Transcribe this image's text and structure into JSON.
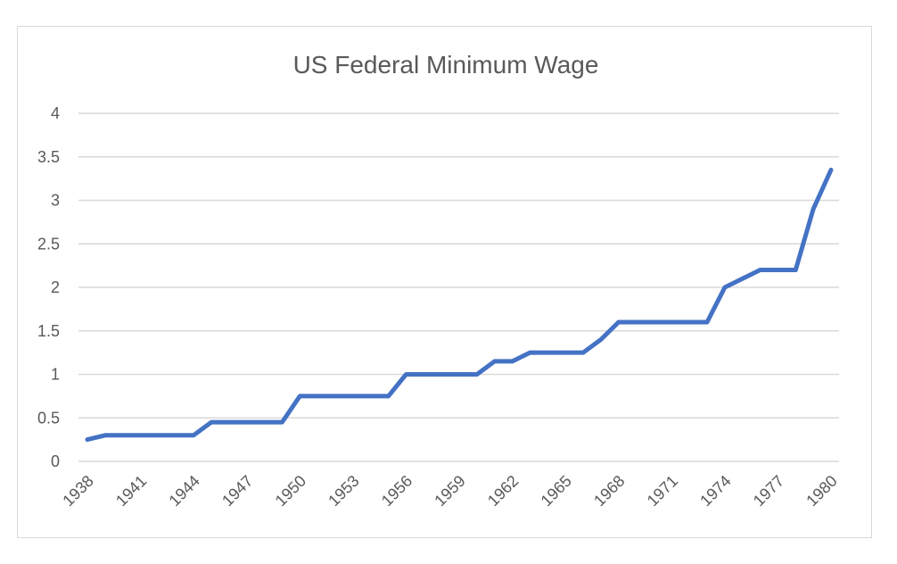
{
  "chart_data": {
    "type": "line",
    "title": "US Federal Minimum Wage",
    "xlabel": "",
    "ylabel": "",
    "ylim": [
      0,
      4
    ],
    "y_ticks": [
      "0",
      "0.5",
      "1",
      "1.5",
      "2",
      "2.5",
      "3",
      "3.5",
      "4"
    ],
    "x_tick_labels": [
      "1938",
      "1941",
      "1944",
      "1947",
      "1950",
      "1953",
      "1956",
      "1959",
      "1962",
      "1965",
      "1968",
      "1971",
      "1974",
      "1977",
      "1980"
    ],
    "grid": true,
    "legend": "none",
    "color": "#4472c4",
    "series": [
      {
        "x": [
          1938,
          1939,
          1940,
          1941,
          1942,
          1943,
          1944,
          1945,
          1946,
          1947,
          1948,
          1949,
          1950,
          1951,
          1952,
          1953,
          1954,
          1955,
          1956,
          1957,
          1958,
          1959,
          1960,
          1961,
          1962,
          1963,
          1964,
          1965,
          1966,
          1967,
          1968,
          1969,
          1970,
          1971,
          1972,
          1973,
          1974,
          1975,
          1976,
          1977,
          1978,
          1979,
          1980
        ],
        "values": [
          0.25,
          0.3,
          0.3,
          0.3,
          0.3,
          0.3,
          0.3,
          0.45,
          0.45,
          0.45,
          0.45,
          0.45,
          0.75,
          0.75,
          0.75,
          0.75,
          0.75,
          0.75,
          1.0,
          1.0,
          1.0,
          1.0,
          1.0,
          1.15,
          1.15,
          1.25,
          1.25,
          1.25,
          1.25,
          1.4,
          1.6,
          1.6,
          1.6,
          1.6,
          1.6,
          1.6,
          2.0,
          2.1,
          2.2,
          2.2,
          2.2,
          2.9,
          3.35
        ]
      }
    ]
  }
}
